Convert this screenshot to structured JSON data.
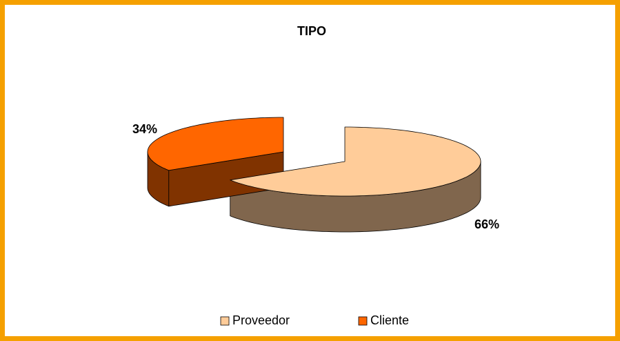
{
  "chart_data": {
    "type": "pie",
    "title": "TIPO",
    "categories": [
      "Proveedor",
      "Cliente"
    ],
    "values": [
      66,
      34
    ],
    "value_labels": [
      "66%",
      "34%"
    ],
    "colors": [
      "#FFCC99",
      "#FF6600"
    ],
    "legend": "bottom"
  }
}
